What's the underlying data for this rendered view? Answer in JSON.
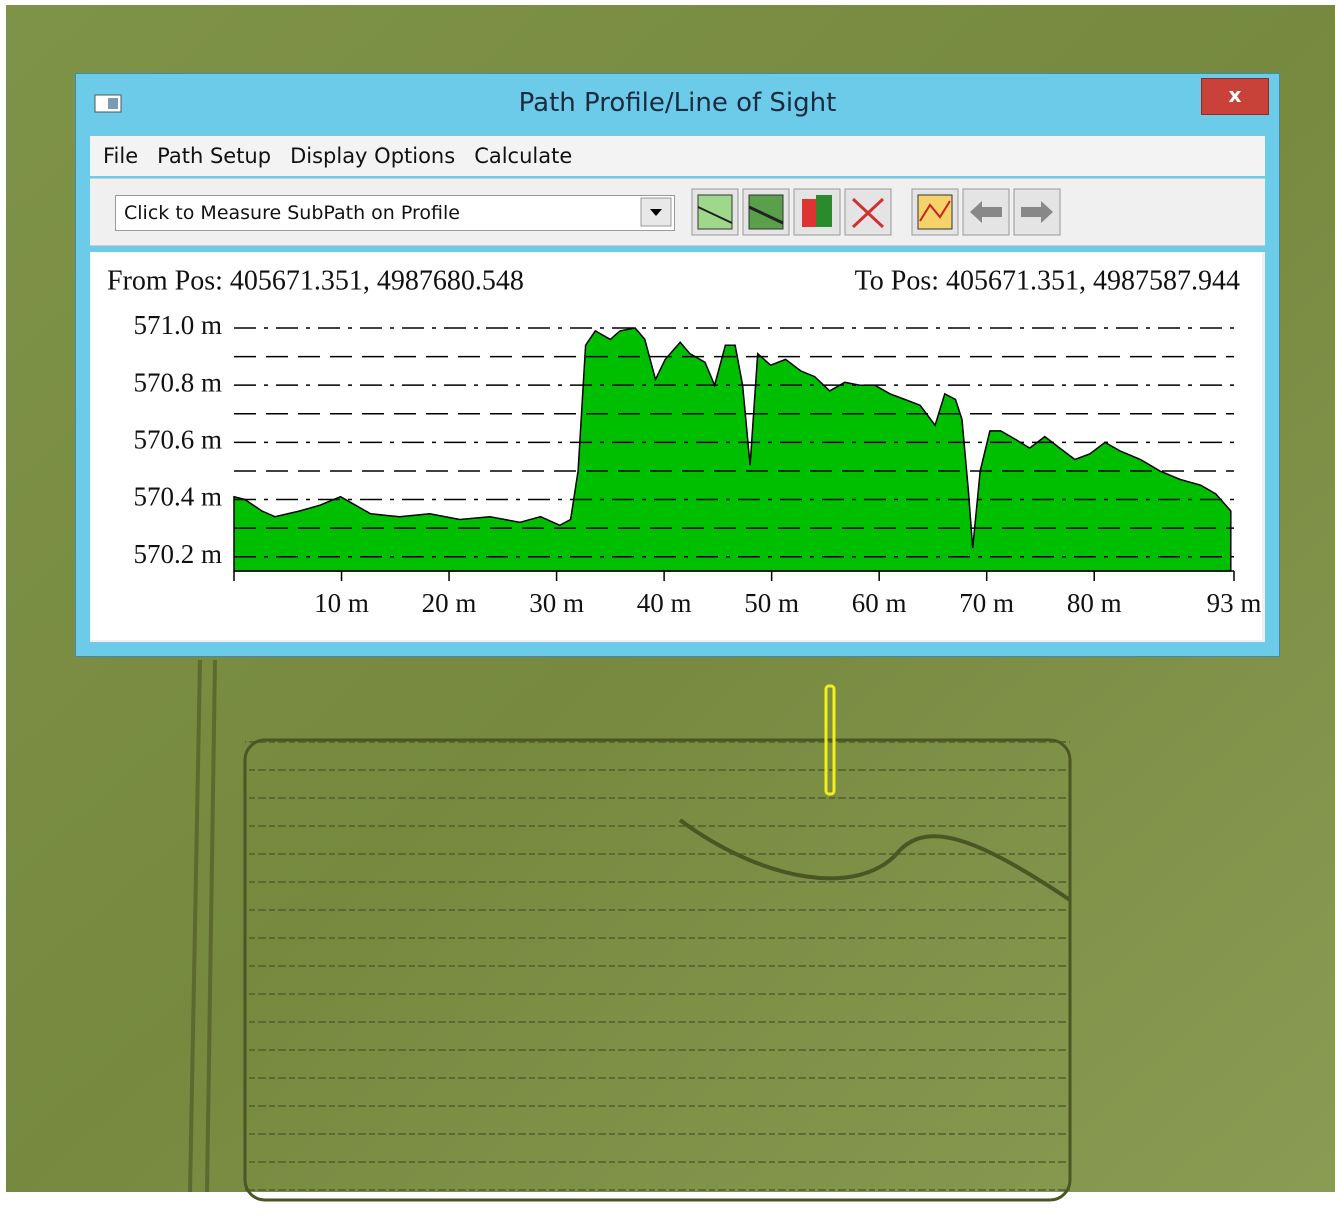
{
  "window": {
    "title": "Path Profile/Line of Sight",
    "close": "x",
    "menu": [
      "File",
      "Path Setup",
      "Display Options",
      "Calculate"
    ],
    "dropdown": "Click to Measure SubPath on Profile"
  },
  "chart_data": {
    "type": "area",
    "from_label": "From Pos: 405671.351, 4987680.548",
    "to_label": "To Pos: 405671.351, 4987587.944",
    "x": [
      0,
      1.0,
      2.6,
      3.8,
      6.1,
      8.0,
      9.9,
      11.3,
      12.7,
      15.4,
      18.2,
      21.0,
      23.8,
      26.6,
      28.5,
      30.3,
      31.3,
      32.0,
      32.7,
      33.6,
      35.0,
      35.9,
      37.3,
      38.2,
      39.2,
      40.1,
      41.5,
      42.4,
      43.8,
      44.7,
      45.7,
      46.6,
      47.3,
      48.0,
      48.7,
      49.9,
      51.3,
      52.7,
      54.0,
      55.4,
      56.8,
      58.2,
      59.6,
      61.0,
      62.4,
      63.8,
      65.2,
      66.1,
      67.1,
      67.7,
      68.3,
      68.7,
      69.4,
      70.3,
      71.3,
      72.7,
      74.0,
      75.4,
      76.8,
      78.2,
      79.6,
      81.0,
      82.4,
      84.3,
      86.1,
      88.0,
      89.9,
      91.3,
      92.7
    ],
    "values": [
      570.41,
      570.4,
      570.36,
      570.34,
      570.36,
      570.38,
      570.41,
      570.38,
      570.35,
      570.34,
      570.35,
      570.33,
      570.34,
      570.32,
      570.34,
      570.31,
      570.33,
      570.5,
      570.94,
      570.99,
      570.96,
      570.99,
      571.0,
      570.96,
      570.82,
      570.89,
      570.95,
      570.91,
      570.88,
      570.8,
      570.94,
      570.94,
      570.8,
      570.52,
      570.91,
      570.87,
      570.89,
      570.85,
      570.83,
      570.78,
      570.81,
      570.8,
      570.8,
      570.77,
      570.75,
      570.73,
      570.66,
      570.77,
      570.75,
      570.68,
      570.43,
      570.23,
      570.5,
      570.64,
      570.64,
      570.61,
      570.58,
      570.62,
      570.58,
      570.54,
      570.56,
      570.6,
      570.57,
      570.54,
      570.5,
      570.47,
      570.45,
      570.42,
      570.36
    ],
    "color": "#00bf00",
    "xlim": [
      0,
      93
    ],
    "xticks": [
      {
        "value": 10,
        "label": "10 m"
      },
      {
        "value": 20,
        "label": "20 m"
      },
      {
        "value": 30,
        "label": "30 m"
      },
      {
        "value": 40,
        "label": "40 m"
      },
      {
        "value": 50,
        "label": "50 m"
      },
      {
        "value": 60,
        "label": "60 m"
      },
      {
        "value": 70,
        "label": "70 m"
      },
      {
        "value": 80,
        "label": "80 m"
      },
      {
        "value": 93,
        "label": "93 m"
      }
    ],
    "ylim": [
      570.15,
      571.0
    ],
    "yticks": [
      {
        "value": 571.0,
        "label": "571.0 m"
      },
      {
        "value": 570.8,
        "label": "570.8 m"
      },
      {
        "value": 570.6,
        "label": "570.6 m"
      },
      {
        "value": 570.4,
        "label": "570.4 m"
      },
      {
        "value": 570.2,
        "label": "570.2 m"
      }
    ],
    "minor_yticks": [
      570.9,
      570.7,
      570.5,
      570.3
    ],
    "grid": true
  }
}
